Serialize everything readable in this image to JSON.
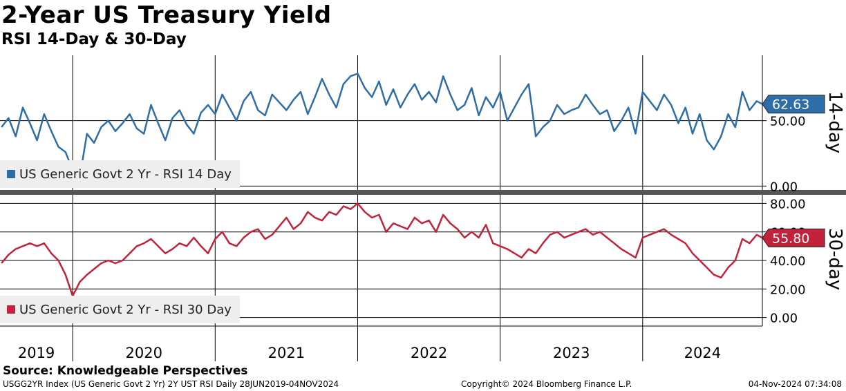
{
  "title": "2-Year US Treasury Yield",
  "subtitle": "RSI 14-Day & 30-Day",
  "source": "Source: Knowledgeable Perspectives",
  "footer": {
    "left": "USGG2YR Index (US Generic Govt 2 Yr) 2Y UST RSI  Daily 28JUN2019-04NOV2024",
    "center": "Copyright© 2024 Bloomberg Finance L.P.",
    "right": "04-Nov-2024 07:34:08"
  },
  "colors": {
    "rsi14": "#2e6da8",
    "rsi30": "#c2223a"
  },
  "chart_data": [
    {
      "type": "line",
      "panel_label": "14-day",
      "x_range": [
        2019.49,
        2024.84
      ],
      "x_tick_labels": [
        "2019",
        "2020",
        "2021",
        "2022",
        "2023",
        "2024"
      ],
      "ylim": [
        -3,
        100
      ],
      "y_tick_labels": [
        "0.00",
        "50.00"
      ],
      "grid": true,
      "legend_position": "bottom-left",
      "last_value_label": "62.63",
      "series": [
        {
          "name": "US Generic Govt 2 Yr - RSI 14 Day",
          "x": [
            2019.5,
            2019.55,
            2019.6,
            2019.65,
            2019.7,
            2019.75,
            2019.8,
            2019.85,
            2019.9,
            2019.95,
            2020.0,
            2020.05,
            2020.1,
            2020.15,
            2020.2,
            2020.25,
            2020.3,
            2020.35,
            2020.4,
            2020.45,
            2020.5,
            2020.55,
            2020.6,
            2020.65,
            2020.7,
            2020.75,
            2020.8,
            2020.85,
            2020.9,
            2020.95,
            2021.0,
            2021.05,
            2021.1,
            2021.15,
            2021.2,
            2021.25,
            2021.3,
            2021.35,
            2021.4,
            2021.45,
            2021.5,
            2021.55,
            2021.6,
            2021.65,
            2021.7,
            2021.75,
            2021.8,
            2021.85,
            2021.9,
            2021.95,
            2022.0,
            2022.05,
            2022.1,
            2022.15,
            2022.2,
            2022.25,
            2022.3,
            2022.35,
            2022.4,
            2022.45,
            2022.5,
            2022.55,
            2022.6,
            2022.65,
            2022.7,
            2022.75,
            2022.8,
            2022.85,
            2022.9,
            2022.95,
            2023.0,
            2023.05,
            2023.1,
            2023.15,
            2023.2,
            2023.25,
            2023.3,
            2023.35,
            2023.4,
            2023.45,
            2023.5,
            2023.55,
            2023.6,
            2023.65,
            2023.7,
            2023.75,
            2023.8,
            2023.85,
            2023.9,
            2023.95,
            2024.0,
            2024.05,
            2024.1,
            2024.15,
            2024.2,
            2024.25,
            2024.3,
            2024.35,
            2024.4,
            2024.45,
            2024.5,
            2024.55,
            2024.6,
            2024.65,
            2024.7,
            2024.75,
            2024.8,
            2024.84
          ],
          "values": [
            45,
            52,
            38,
            60,
            48,
            35,
            55,
            42,
            30,
            26,
            12,
            7,
            40,
            33,
            45,
            50,
            42,
            48,
            55,
            44,
            40,
            62,
            48,
            35,
            52,
            58,
            47,
            40,
            56,
            62,
            55,
            70,
            60,
            50,
            65,
            72,
            58,
            54,
            70,
            64,
            58,
            66,
            72,
            55,
            68,
            82,
            70,
            60,
            78,
            84,
            86,
            75,
            68,
            80,
            62,
            74,
            60,
            70,
            78,
            66,
            72,
            64,
            84,
            70,
            58,
            62,
            75,
            54,
            68,
            60,
            72,
            50,
            60,
            70,
            78,
            38,
            45,
            50,
            62,
            55,
            58,
            60,
            70,
            62,
            55,
            58,
            42,
            50,
            60,
            40,
            72,
            65,
            58,
            70,
            62,
            48,
            60,
            40,
            55,
            35,
            28,
            38,
            55,
            45,
            72,
            58,
            65,
            62.63
          ]
        }
      ]
    },
    {
      "type": "line",
      "panel_label": "30-day",
      "x_range": [
        2019.49,
        2024.84
      ],
      "x_tick_labels": [
        "2019",
        "2020",
        "2021",
        "2022",
        "2023",
        "2024"
      ],
      "ylim": [
        -6,
        86
      ],
      "y_tick_labels": [
        "0.00",
        "20.00",
        "40.00",
        "60.00",
        "80.00"
      ],
      "grid": true,
      "legend_position": "bottom-left",
      "last_value_label": "55.80",
      "series": [
        {
          "name": "US Generic Govt 2 Yr - RSI 30 Day",
          "x": [
            2019.5,
            2019.55,
            2019.6,
            2019.65,
            2019.7,
            2019.75,
            2019.8,
            2019.85,
            2019.9,
            2019.95,
            2020.0,
            2020.05,
            2020.1,
            2020.15,
            2020.2,
            2020.25,
            2020.3,
            2020.35,
            2020.4,
            2020.45,
            2020.5,
            2020.55,
            2020.6,
            2020.65,
            2020.7,
            2020.75,
            2020.8,
            2020.85,
            2020.9,
            2020.95,
            2021.0,
            2021.05,
            2021.1,
            2021.15,
            2021.2,
            2021.25,
            2021.3,
            2021.35,
            2021.4,
            2021.45,
            2021.5,
            2021.55,
            2021.6,
            2021.65,
            2021.7,
            2021.75,
            2021.8,
            2021.85,
            2021.9,
            2021.95,
            2022.0,
            2022.05,
            2022.1,
            2022.15,
            2022.2,
            2022.25,
            2022.3,
            2022.35,
            2022.4,
            2022.45,
            2022.5,
            2022.55,
            2022.6,
            2022.65,
            2022.7,
            2022.75,
            2022.8,
            2022.85,
            2022.9,
            2022.95,
            2023.0,
            2023.05,
            2023.1,
            2023.15,
            2023.2,
            2023.25,
            2023.3,
            2023.35,
            2023.4,
            2023.45,
            2023.5,
            2023.55,
            2023.6,
            2023.65,
            2023.7,
            2023.75,
            2023.8,
            2023.85,
            2023.9,
            2023.95,
            2024.0,
            2024.05,
            2024.1,
            2024.15,
            2024.2,
            2024.25,
            2024.3,
            2024.35,
            2024.4,
            2024.45,
            2024.5,
            2024.55,
            2024.6,
            2024.65,
            2024.7,
            2024.75,
            2024.8,
            2024.84
          ],
          "values": [
            38,
            44,
            48,
            50,
            52,
            50,
            52,
            45,
            40,
            30,
            15,
            25,
            30,
            34,
            38,
            40,
            38,
            40,
            45,
            50,
            52,
            55,
            50,
            45,
            48,
            52,
            50,
            56,
            50,
            45,
            55,
            60,
            52,
            50,
            56,
            60,
            62,
            55,
            58,
            64,
            70,
            62,
            66,
            74,
            70,
            68,
            74,
            72,
            78,
            76,
            80,
            74,
            70,
            72,
            60,
            66,
            64,
            62,
            70,
            66,
            68,
            60,
            72,
            66,
            62,
            56,
            60,
            56,
            65,
            52,
            50,
            48,
            45,
            42,
            48,
            45,
            52,
            58,
            60,
            56,
            58,
            60,
            62,
            58,
            60,
            56,
            52,
            48,
            45,
            42,
            56,
            58,
            60,
            62,
            58,
            55,
            52,
            45,
            40,
            35,
            30,
            28,
            35,
            40,
            55,
            52,
            58,
            55.8
          ]
        }
      ]
    }
  ]
}
